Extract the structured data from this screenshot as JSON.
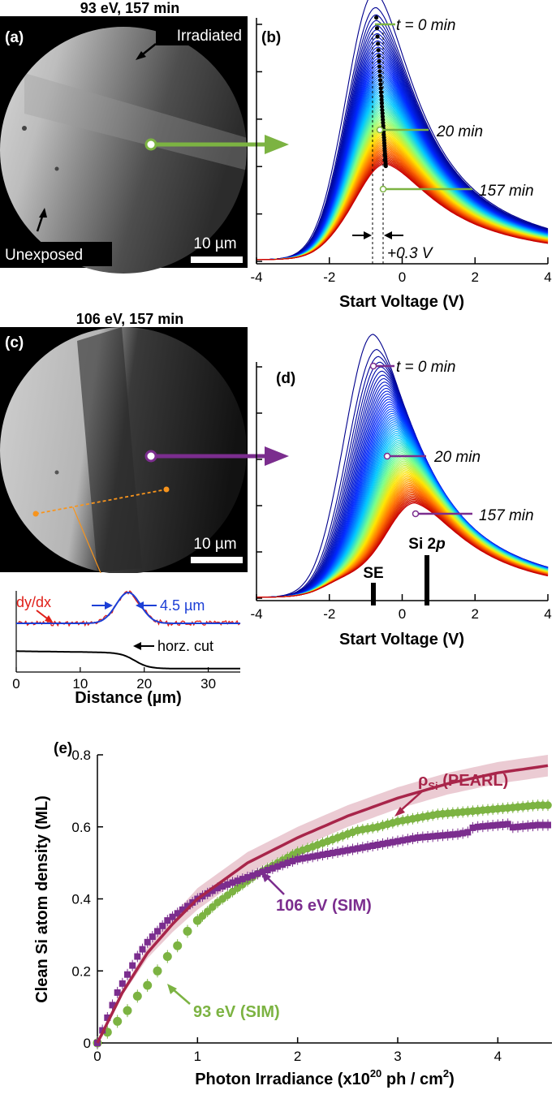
{
  "panel_a": {
    "letter": "(a)",
    "title": "93 eV, 157 min",
    "irradiated_label": "Irradiated",
    "unexposed_label": "Unexposed",
    "scalebar_label": "10 µm"
  },
  "panel_b": {
    "letter": "(b)",
    "t0_label": "t = 0 min",
    "t20_label": "20 min",
    "t157_label": "157 min",
    "shift_label": "+0.3 V",
    "xlabel": "Start Voltage (V)",
    "xticks": [
      "-4",
      "-2",
      "0",
      "2",
      "4"
    ]
  },
  "panel_c": {
    "letter": "(c)",
    "title": "106 eV, 157 min",
    "scalebar_label": "10 µm",
    "inset": {
      "dydx_label": "dy/dx",
      "width_label": "4.5 µm",
      "cut_label": "horz. cut",
      "xlabel": "Distance (µm)",
      "xticks": [
        "0",
        "10",
        "20",
        "30"
      ]
    }
  },
  "panel_d": {
    "letter": "(d)",
    "t0_label": "t = 0 min",
    "t20_label": "20 min",
    "t157_label": "157 min",
    "si2p_prefix": "Si 2",
    "si2p_italic": "p",
    "se_label": "SE",
    "xlabel": "Start Voltage (V)",
    "xticks": [
      "-4",
      "-2",
      "0",
      "2",
      "4"
    ]
  },
  "panel_e": {
    "letter": "(e)",
    "label_pearl_rho": "ρ",
    "label_pearl_sub": "Si",
    "label_pearl_rest": " (PEARL)",
    "label_106": "106 eV (SIM)",
    "label_93": "93 eV (SIM)",
    "xlabel": "Photon Irradiance (x10",
    "xlabel_sup": "20",
    "xlabel_tail": " ph / cm",
    "xlabel_sup2": "2",
    "xlabel_end": ")",
    "ylabel": "Clean Si atom density (ML)",
    "xticks": [
      "0",
      "1",
      "2",
      "3",
      "4"
    ],
    "yticks": [
      "0",
      "0.2",
      "0.4",
      "0.6",
      "0.8"
    ]
  },
  "colors": {
    "green": "#7cb342",
    "purple": "#7b2d8e",
    "pearl": "#a8254a",
    "pearl_band": "#e8c2cb"
  },
  "chart_data": [
    {
      "type": "line",
      "panel": "b",
      "xlabel": "Start Voltage (V)",
      "xlim": [
        -4,
        4
      ],
      "description_series": "family of spectra from t = 0 min (blue) to 157 min (red)",
      "series": [
        {
          "name": "t = 0 min",
          "peak_x": -0.75,
          "peak_y_rel": 1.0
        },
        {
          "name": "20 min",
          "peak_x": -0.6,
          "peak_y_rel": 0.58
        },
        {
          "name": "157 min",
          "peak_x": -0.45,
          "peak_y_rel": 0.31
        }
      ],
      "peak_shift_V": 0.3
    },
    {
      "type": "line",
      "panel": "d",
      "xlabel": "Start Voltage (V)",
      "xlim": [
        -4,
        4
      ],
      "series": [
        {
          "name": "t = 0 min",
          "peak_x": -0.8,
          "peak_y_rel": 1.0
        },
        {
          "name": "20 min",
          "peak_x": -0.4,
          "peak_y_rel": 0.63
        },
        {
          "name": "157 min",
          "peak_x": 0.35,
          "peak_y_rel": 0.34
        }
      ],
      "markers": [
        {
          "name": "SE",
          "x": -0.8
        },
        {
          "name": "Si 2p",
          "x": 0.7
        }
      ]
    },
    {
      "type": "line",
      "panel": "c-inset",
      "xlabel": "Distance (µm)",
      "xlim": [
        0,
        35
      ],
      "series": [
        {
          "name": "dy/dx",
          "peak_x": 17.5,
          "fwhm": 4.5
        },
        {
          "name": "horz. cut",
          "step_x": 18.5
        }
      ]
    },
    {
      "type": "scatter",
      "panel": "e",
      "xlabel": "Photon Irradiance (x10^20 ph / cm^2)",
      "ylabel": "Clean Si atom density (ML)",
      "xlim": [
        0,
        4.5
      ],
      "ylim": [
        0,
        0.8
      ],
      "series": [
        {
          "name": "ρSi (PEARL)",
          "kind": "line",
          "x": [
            0,
            0.25,
            0.5,
            0.75,
            1.0,
            1.5,
            2.0,
            2.5,
            3.0,
            3.5,
            4.0,
            4.5
          ],
          "y": [
            0,
            0.14,
            0.25,
            0.33,
            0.4,
            0.5,
            0.57,
            0.63,
            0.68,
            0.72,
            0.75,
            0.77
          ]
        },
        {
          "name": "106 eV (SIM)",
          "kind": "markers-square",
          "x": [
            0,
            0.1,
            0.2,
            0.3,
            0.4,
            0.5,
            0.6,
            0.7,
            0.8,
            0.9,
            1.0,
            1.2,
            1.4,
            1.6,
            1.8,
            2.0,
            2.2,
            2.4,
            2.6,
            2.8,
            3.0,
            3.2,
            3.4,
            3.6,
            3.8,
            4.0,
            4.2,
            4.4,
            4.5
          ],
          "y": [
            0.0,
            0.07,
            0.14,
            0.19,
            0.24,
            0.28,
            0.31,
            0.34,
            0.36,
            0.38,
            0.4,
            0.43,
            0.45,
            0.47,
            0.49,
            0.51,
            0.52,
            0.53,
            0.54,
            0.55,
            0.56,
            0.57,
            0.575,
            0.58,
            0.59,
            0.595,
            0.6,
            0.605,
            0.605
          ]
        },
        {
          "name": "93 eV (SIM)",
          "kind": "markers-circle",
          "x": [
            0,
            0.1,
            0.2,
            0.3,
            0.4,
            0.5,
            0.6,
            0.7,
            0.8,
            0.9,
            1.0,
            1.2,
            1.4,
            1.6,
            1.8,
            2.0,
            2.2,
            2.4,
            2.6,
            2.8,
            3.0,
            3.2,
            3.4,
            3.6,
            3.8,
            4.0,
            4.2,
            4.4,
            4.5
          ],
          "y": [
            0.0,
            0.03,
            0.06,
            0.09,
            0.13,
            0.16,
            0.2,
            0.24,
            0.27,
            0.31,
            0.34,
            0.39,
            0.43,
            0.47,
            0.5,
            0.53,
            0.55,
            0.57,
            0.59,
            0.6,
            0.615,
            0.625,
            0.635,
            0.64,
            0.645,
            0.65,
            0.655,
            0.66,
            0.66
          ]
        }
      ]
    }
  ]
}
